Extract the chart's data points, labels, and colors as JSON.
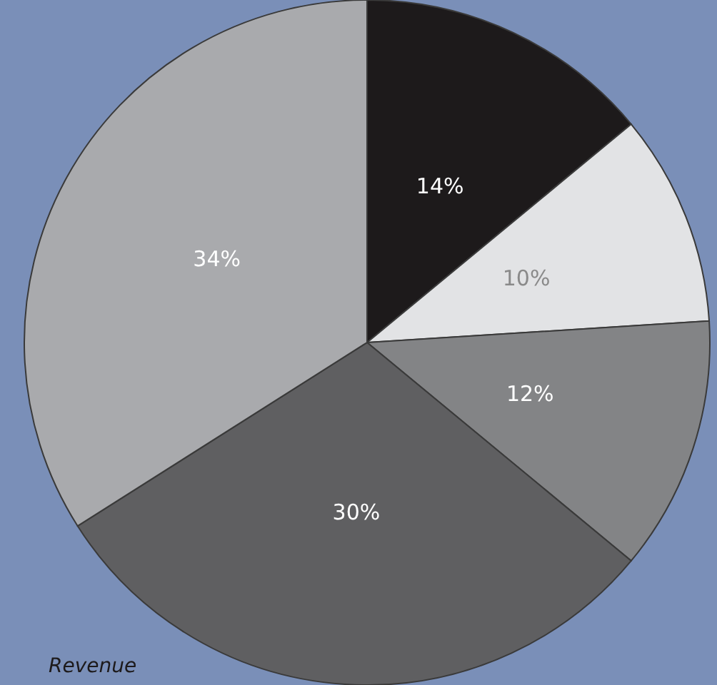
{
  "chart_data": {
    "type": "pie",
    "title": "Revenue",
    "categories": [
      null,
      null,
      null,
      null,
      null
    ],
    "values": [
      14,
      10,
      12,
      30,
      34
    ],
    "colors": [
      "#1d1a1b",
      "#e2e3e5",
      "#838486",
      "#5f5f61",
      "#a9aaad"
    ],
    "value_labels": [
      "14%",
      "10%",
      "12%",
      "30%",
      "34%"
    ]
  }
}
